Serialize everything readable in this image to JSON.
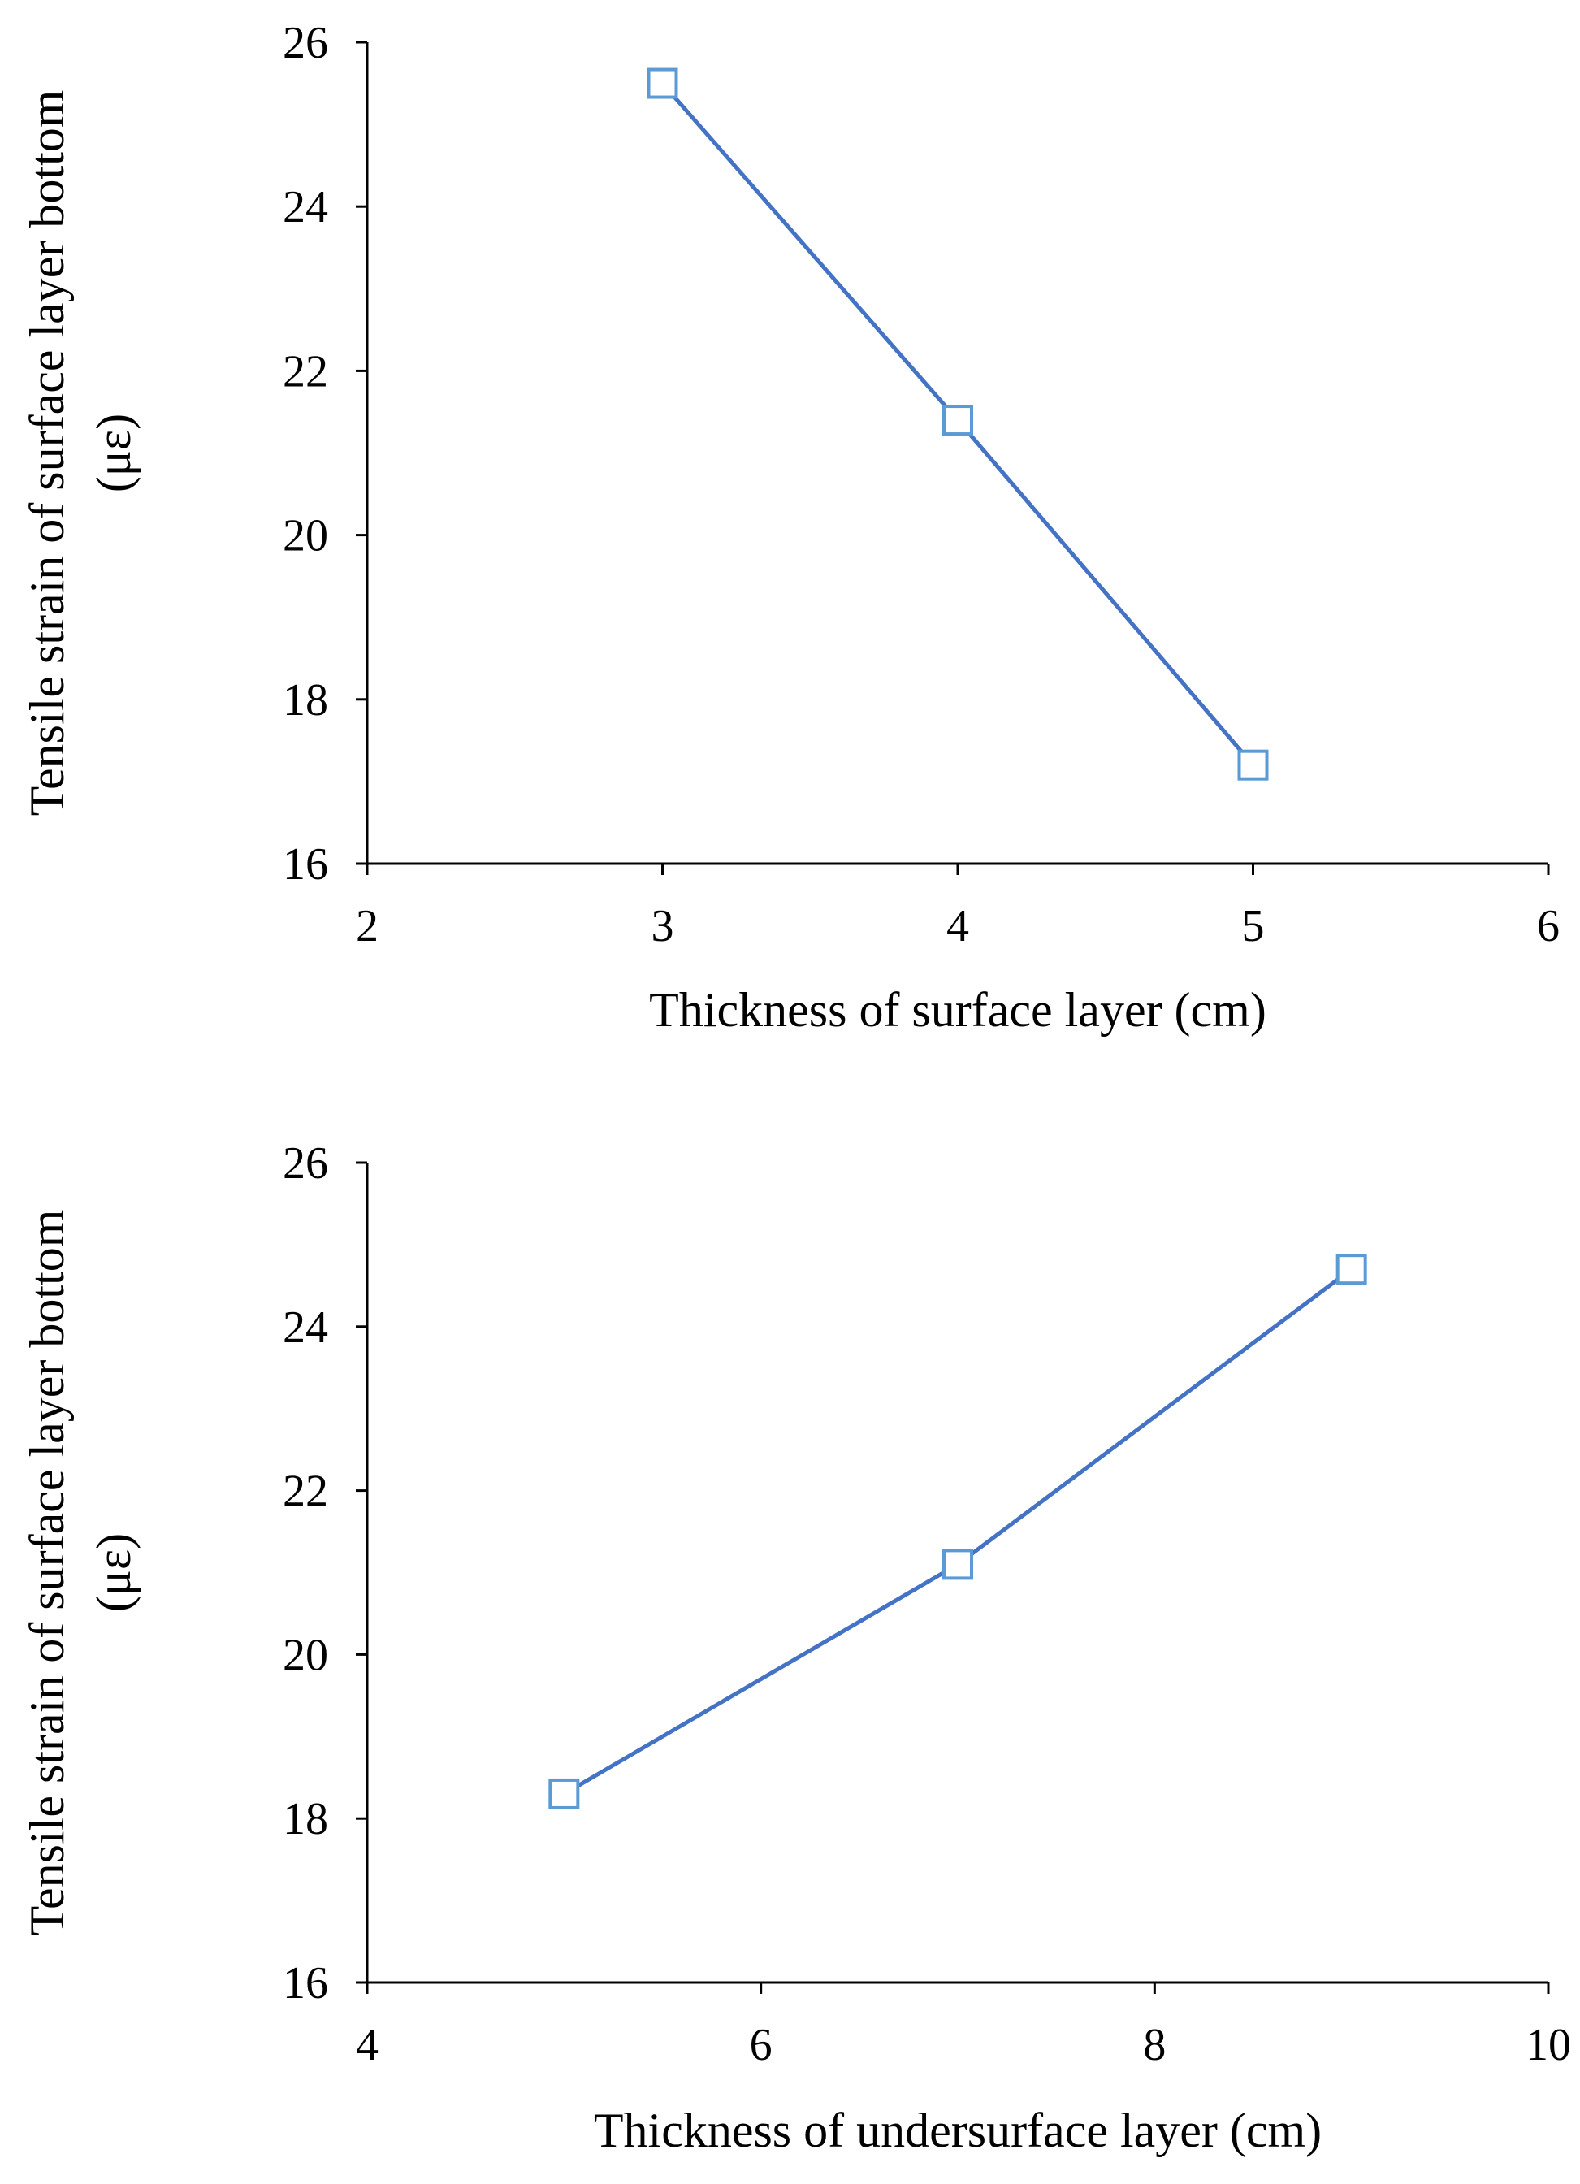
{
  "chart_data": [
    {
      "type": "line",
      "title": "",
      "xlabel": "Thickness of surface layer (cm)",
      "ylabel": "Tensile strain of surface layer bottom",
      "ylabel_unit": "(με)",
      "xlim": [
        2,
        6
      ],
      "ylim": [
        16,
        26
      ],
      "xticks": [
        "2",
        "3",
        "4",
        "5",
        "6"
      ],
      "yticks": [
        "16",
        "18",
        "20",
        "22",
        "24",
        "26"
      ],
      "grid": false,
      "series": [
        {
          "name": "Tensile strain",
          "x": [
            3,
            4,
            5
          ],
          "values": [
            25.5,
            21.4,
            17.2
          ],
          "color": "#4472C4",
          "marker": "open-square",
          "marker_color": "#5B9BD5"
        }
      ]
    },
    {
      "type": "line",
      "title": "",
      "xlabel": "Thickness of undersurface layer (cm)",
      "ylabel": "Tensile strain of surface layer bottom",
      "ylabel_unit": "(με)",
      "xlim": [
        4,
        10
      ],
      "ylim": [
        16,
        26
      ],
      "xticks": [
        "4",
        "6",
        "8",
        "10"
      ],
      "yticks": [
        "16",
        "18",
        "20",
        "22",
        "24",
        "26"
      ],
      "grid": false,
      "series": [
        {
          "name": "Tensile strain",
          "x": [
            5,
            7,
            9
          ],
          "values": [
            18.3,
            21.1,
            24.7
          ],
          "color": "#4472C4",
          "marker": "open-square",
          "marker_color": "#5B9BD5"
        }
      ]
    }
  ]
}
